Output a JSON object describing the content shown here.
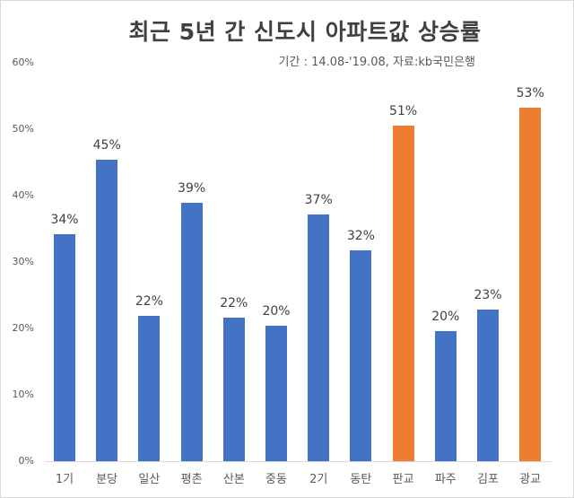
{
  "chart_data": {
    "type": "bar",
    "title": "최근 5년 간  신도시 아파트값 상승률",
    "subtitle": "기간 : 14.08-'19.08,  자료:kb국민은행",
    "xlabel": "",
    "ylabel": "",
    "ylim": [
      0,
      60
    ],
    "yticks": [
      "0%",
      "10%",
      "20%",
      "30%",
      "40%",
      "50%",
      "60%"
    ],
    "grid": false,
    "legend": null,
    "categories": [
      "1기",
      "분당",
      "일산",
      "평촌",
      "산본",
      "중동",
      "2기",
      "동탄",
      "판교",
      "파주",
      "김포",
      "광교"
    ],
    "values": [
      34,
      45,
      22,
      39,
      22,
      20,
      37,
      32,
      51,
      20,
      23,
      53
    ],
    "plot_values": [
      34.2,
      45.4,
      21.9,
      38.9,
      21.6,
      20.4,
      37.1,
      31.7,
      50.6,
      19.6,
      22.9,
      53.3
    ],
    "data_labels": [
      "34%",
      "45%",
      "22%",
      "39%",
      "22%",
      "20%",
      "37%",
      "32%",
      "51%",
      "20%",
      "23%",
      "53%"
    ],
    "colors": [
      "#4472c4",
      "#4472c4",
      "#4472c4",
      "#4472c4",
      "#4472c4",
      "#4472c4",
      "#4472c4",
      "#4472c4",
      "#ed7d31",
      "#4472c4",
      "#4472c4",
      "#ed7d31"
    ],
    "highlight_color": "#ed7d31",
    "base_color": "#4472c4"
  }
}
